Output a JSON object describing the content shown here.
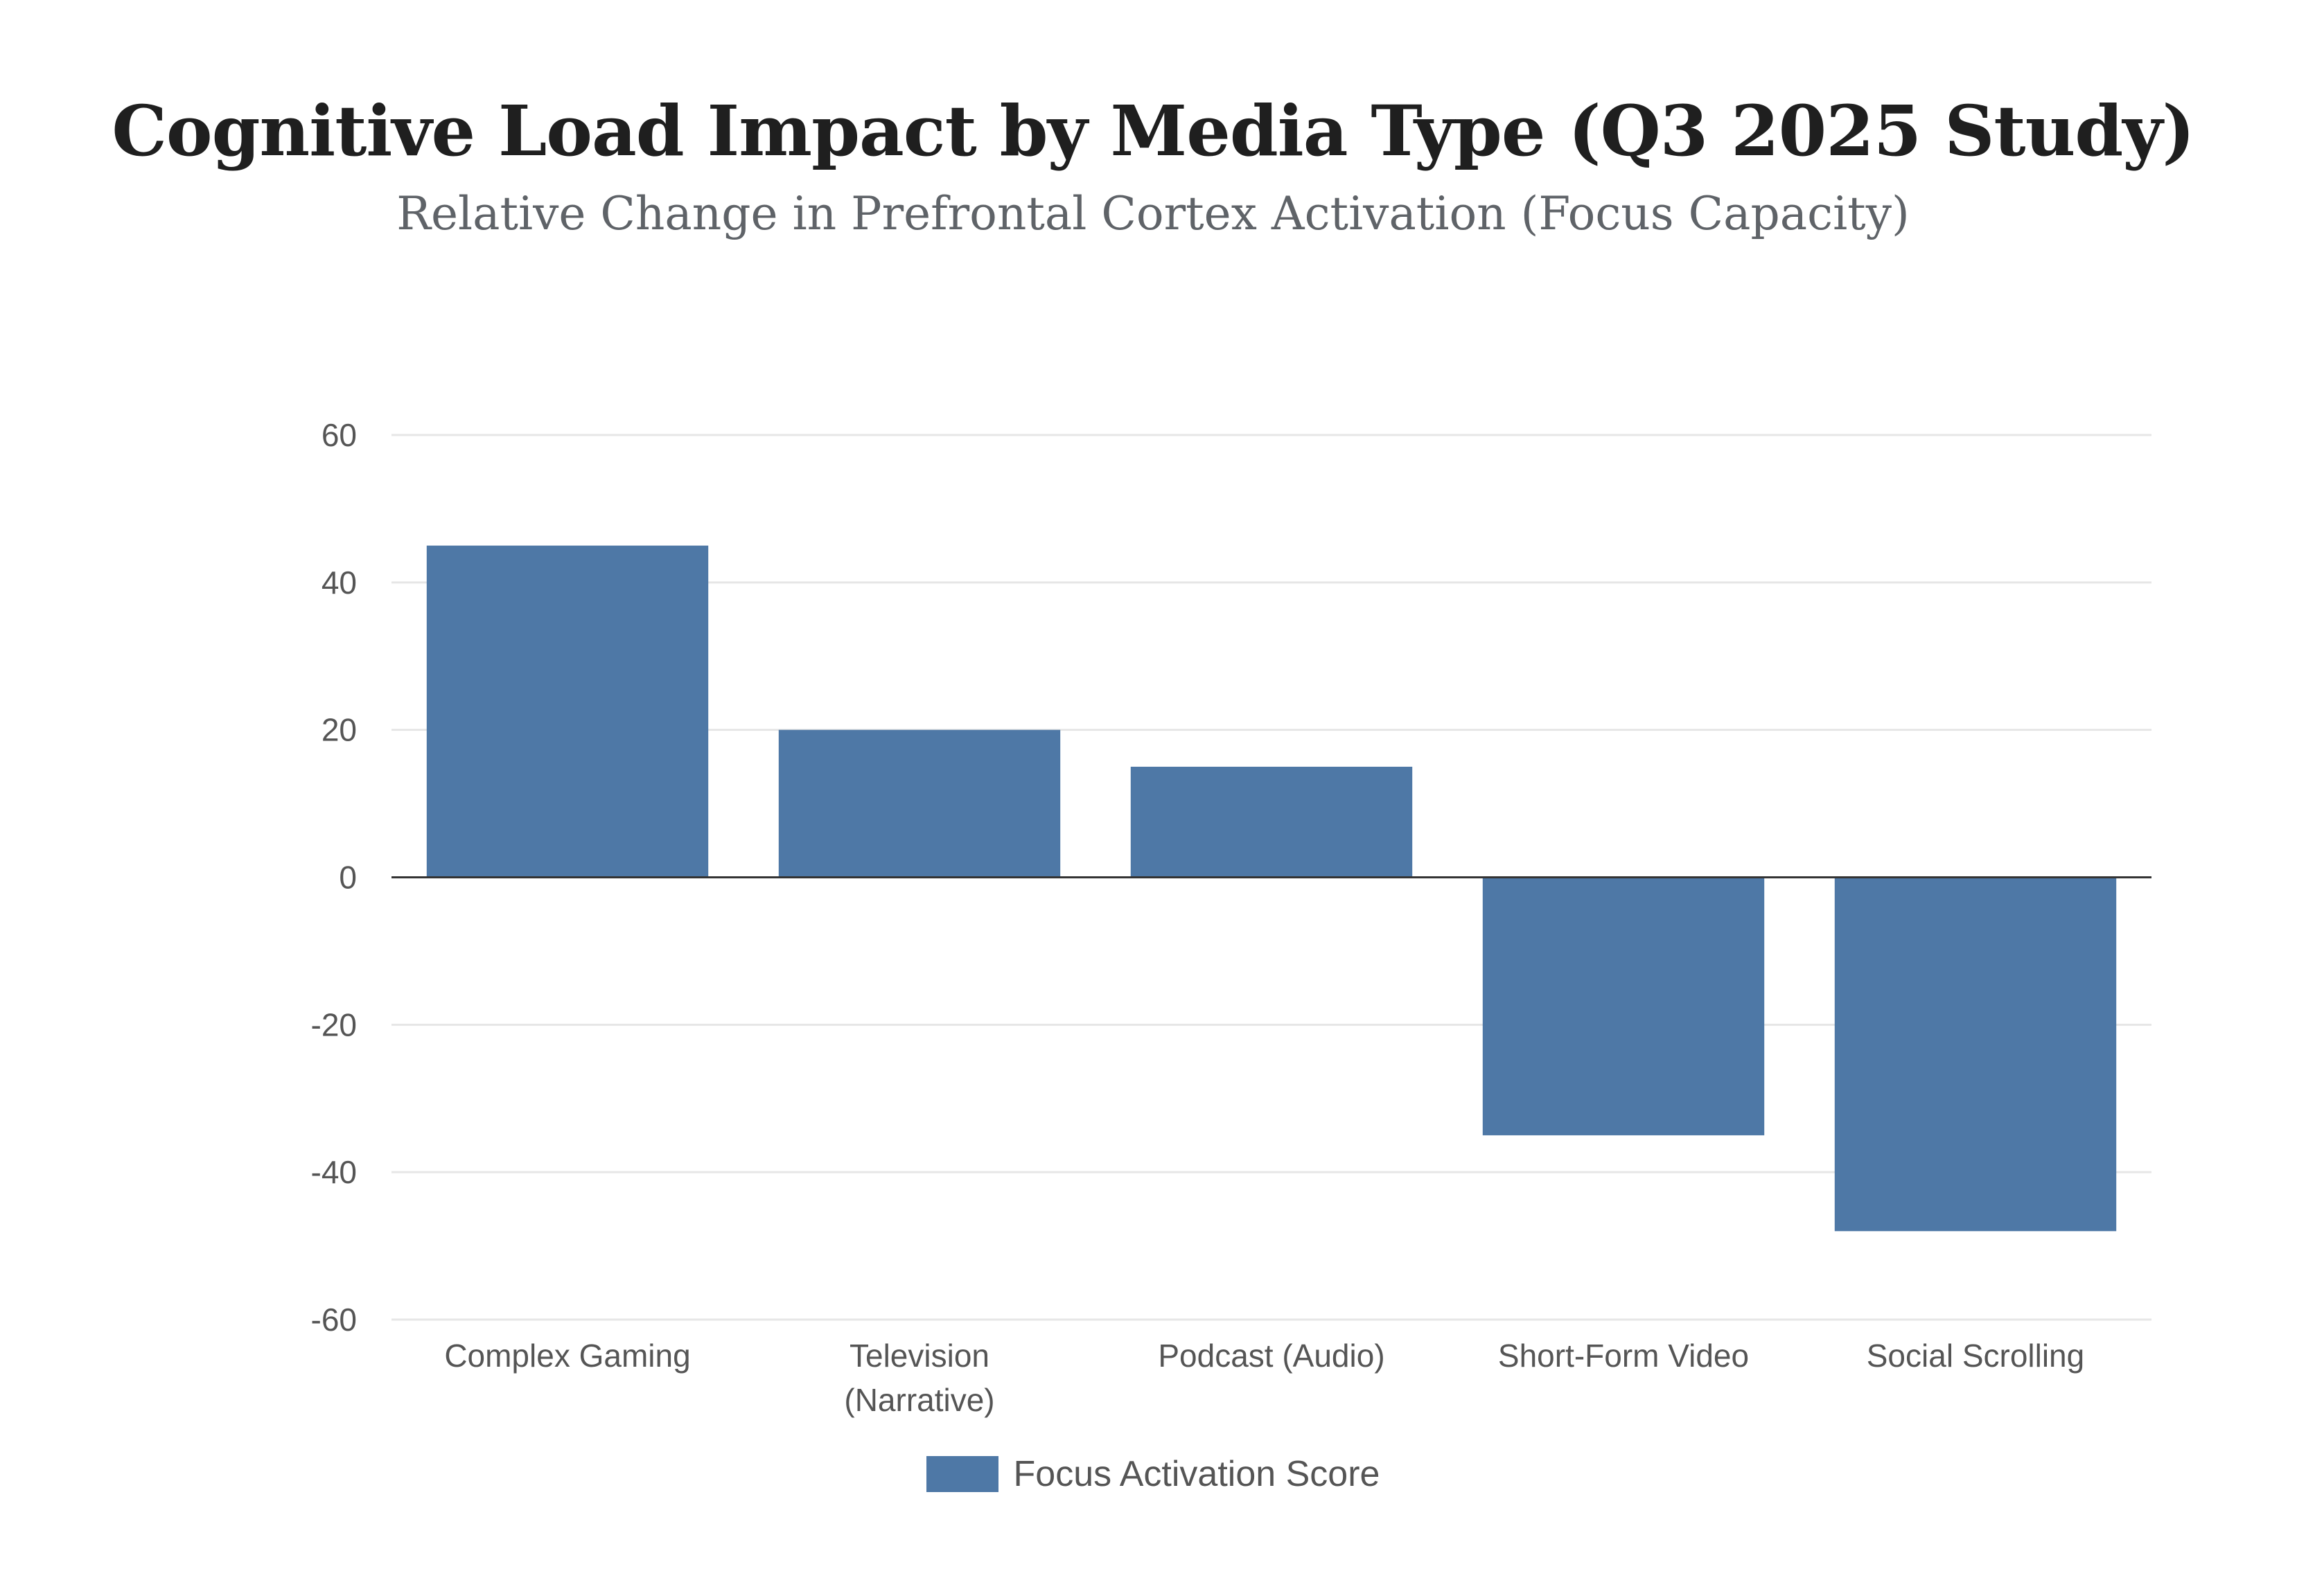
{
  "chart_data": {
    "type": "bar",
    "title": "Cognitive Load Impact by Media Type (Q3 2025 Study)",
    "subtitle": "Relative Change in Prefrontal Cortex Activation (Focus Capacity)",
    "categories": [
      [
        "Complex Gaming"
      ],
      [
        "Television",
        "(Narrative)"
      ],
      [
        "Podcast (Audio)"
      ],
      [
        "Short-Form Video"
      ],
      [
        "Social Scrolling"
      ]
    ],
    "series": [
      {
        "name": "Focus Activation Score",
        "values": [
          45,
          20,
          15,
          -35,
          -48
        ],
        "color": "#4e78a6"
      }
    ],
    "ylim": [
      -60,
      60
    ],
    "yticks": [
      60,
      40,
      20,
      0,
      -20,
      -40,
      -60
    ],
    "grid": true,
    "legend_position": "bottom-center",
    "colors": {
      "bar": "#4e78a6",
      "grid": "#e6e6e6",
      "zero_line": "#333333",
      "axis_text": "#555555"
    }
  }
}
